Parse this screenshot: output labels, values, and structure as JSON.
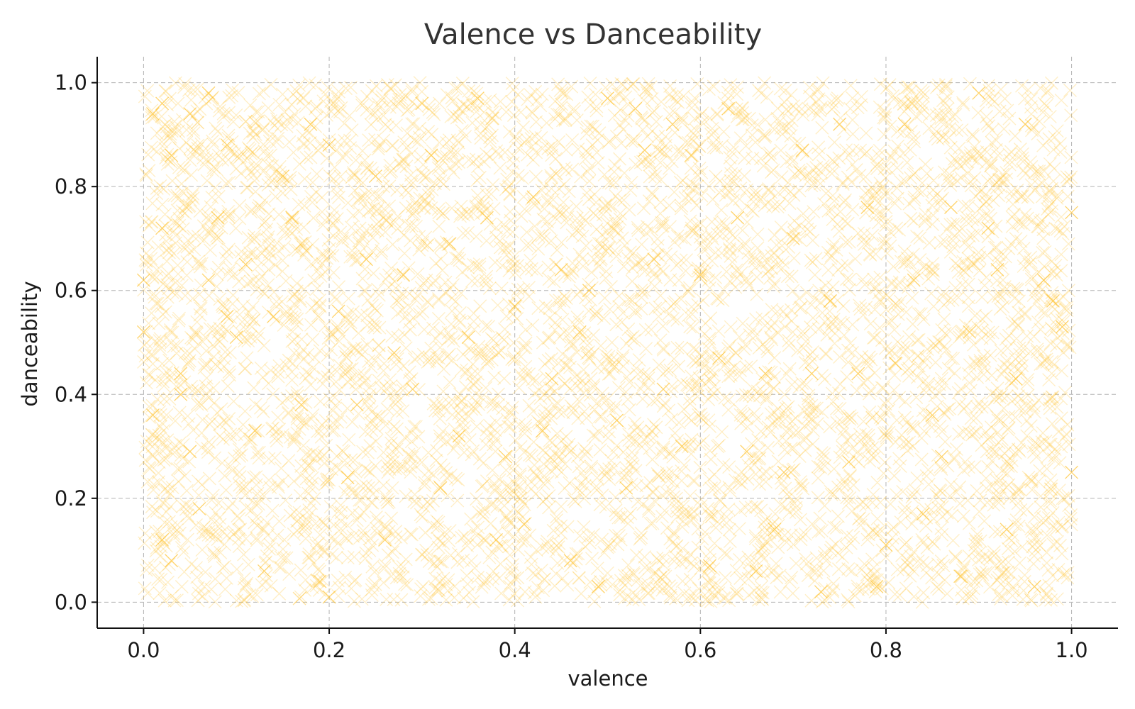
{
  "chart_data": {
    "type": "scatter",
    "title": "Valence vs Danceability",
    "xlabel": "valence",
    "ylabel": "danceability",
    "xlim": [
      -0.05,
      1.05
    ],
    "ylim": [
      -0.05,
      1.05
    ],
    "xticks": [
      0.0,
      0.2,
      0.4,
      0.6,
      0.8,
      1.0
    ],
    "yticks": [
      0.0,
      0.2,
      0.4,
      0.6,
      0.8,
      1.0
    ],
    "xtick_labels": [
      "0.0",
      "0.2",
      "0.4",
      "0.6",
      "0.8",
      "1.0"
    ],
    "ytick_labels": [
      "0.0",
      "0.2",
      "0.4",
      "0.6",
      "0.8",
      "1.0"
    ],
    "grid": true,
    "marker": "x",
    "point_count": 5000,
    "color": "#FFC22D",
    "series": [
      {
        "values": [
          {
            "x": 0.0,
            "y": 0.62
          },
          {
            "x": 0.0,
            "y": 0.52
          },
          {
            "x": 0.01,
            "y": 0.94
          },
          {
            "x": 0.01,
            "y": 0.36
          },
          {
            "x": 0.02,
            "y": 0.12
          },
          {
            "x": 0.02,
            "y": 0.96
          },
          {
            "x": 0.02,
            "y": 0.72
          },
          {
            "x": 0.03,
            "y": 0.86
          },
          {
            "x": 0.03,
            "y": 0.08
          },
          {
            "x": 0.04,
            "y": 0.44
          },
          {
            "x": 0.04,
            "y": 0.4
          },
          {
            "x": 0.05,
            "y": 0.94
          },
          {
            "x": 0.05,
            "y": 0.29
          },
          {
            "x": 0.06,
            "y": 0.18
          },
          {
            "x": 0.07,
            "y": 0.62
          },
          {
            "x": 0.07,
            "y": 0.98
          },
          {
            "x": 0.08,
            "y": 0.74
          },
          {
            "x": 0.09,
            "y": 0.88
          },
          {
            "x": 0.09,
            "y": 0.55
          },
          {
            "x": 0.1,
            "y": 0.51
          },
          {
            "x": 0.11,
            "y": 0.65
          },
          {
            "x": 0.12,
            "y": 0.33
          },
          {
            "x": 0.13,
            "y": 0.06
          },
          {
            "x": 0.14,
            "y": 0.55
          },
          {
            "x": 0.15,
            "y": 0.82
          },
          {
            "x": 0.16,
            "y": 0.74
          },
          {
            "x": 0.17,
            "y": 0.38
          },
          {
            "x": 0.18,
            "y": 0.92
          },
          {
            "x": 0.19,
            "y": 0.04
          },
          {
            "x": 0.2,
            "y": 0.01
          },
          {
            "x": 0.2,
            "y": 0.88
          },
          {
            "x": 0.21,
            "y": 0.56
          },
          {
            "x": 0.22,
            "y": 0.24
          },
          {
            "x": 0.23,
            "y": 0.38
          },
          {
            "x": 0.24,
            "y": 0.66
          },
          {
            "x": 0.25,
            "y": 0.82
          },
          {
            "x": 0.26,
            "y": 0.12
          },
          {
            "x": 0.27,
            "y": 0.48
          },
          {
            "x": 0.28,
            "y": 0.63
          },
          {
            "x": 0.29,
            "y": 0.41
          },
          {
            "x": 0.3,
            "y": 0.96
          },
          {
            "x": 0.31,
            "y": 0.86
          },
          {
            "x": 0.32,
            "y": 0.22
          },
          {
            "x": 0.33,
            "y": 0.69
          },
          {
            "x": 0.34,
            "y": 0.32
          },
          {
            "x": 0.35,
            "y": 0.51
          },
          {
            "x": 0.36,
            "y": 0.97
          },
          {
            "x": 0.37,
            "y": 0.74
          },
          {
            "x": 0.38,
            "y": 0.12
          },
          {
            "x": 0.39,
            "y": 0.28
          },
          {
            "x": 0.4,
            "y": 0.57
          },
          {
            "x": 0.41,
            "y": 0.15
          },
          {
            "x": 0.42,
            "y": 0.78
          },
          {
            "x": 0.43,
            "y": 0.33
          },
          {
            "x": 0.44,
            "y": 0.43
          },
          {
            "x": 0.45,
            "y": 0.64
          },
          {
            "x": 0.46,
            "y": 0.08
          },
          {
            "x": 0.47,
            "y": 0.52
          },
          {
            "x": 0.48,
            "y": 0.6
          },
          {
            "x": 0.49,
            "y": 0.03
          },
          {
            "x": 0.5,
            "y": 0.97
          },
          {
            "x": 0.51,
            "y": 0.35
          },
          {
            "x": 0.52,
            "y": 0.22
          },
          {
            "x": 0.53,
            "y": 0.95
          },
          {
            "x": 0.54,
            "y": 0.87
          },
          {
            "x": 0.55,
            "y": 0.66
          },
          {
            "x": 0.56,
            "y": 0.41
          },
          {
            "x": 0.57,
            "y": 0.92
          },
          {
            "x": 0.58,
            "y": 0.3
          },
          {
            "x": 0.59,
            "y": 0.86
          },
          {
            "x": 0.6,
            "y": 0.63
          },
          {
            "x": 0.61,
            "y": 0.07
          },
          {
            "x": 0.62,
            "y": 0.47
          },
          {
            "x": 0.63,
            "y": 0.95
          },
          {
            "x": 0.64,
            "y": 0.74
          },
          {
            "x": 0.65,
            "y": 0.29
          },
          {
            "x": 0.66,
            "y": 0.06
          },
          {
            "x": 0.67,
            "y": 0.44
          },
          {
            "x": 0.68,
            "y": 0.14
          },
          {
            "x": 0.69,
            "y": 0.25
          },
          {
            "x": 0.7,
            "y": 0.7
          },
          {
            "x": 0.71,
            "y": 0.87
          },
          {
            "x": 0.72,
            "y": 0.44
          },
          {
            "x": 0.73,
            "y": 0.02
          },
          {
            "x": 0.74,
            "y": 0.58
          },
          {
            "x": 0.75,
            "y": 0.92
          },
          {
            "x": 0.76,
            "y": 0.27
          },
          {
            "x": 0.77,
            "y": 0.44
          },
          {
            "x": 0.78,
            "y": 0.76
          },
          {
            "x": 0.79,
            "y": 0.03
          },
          {
            "x": 0.8,
            "y": 0.11
          },
          {
            "x": 0.81,
            "y": 0.46
          },
          {
            "x": 0.82,
            "y": 0.92
          },
          {
            "x": 0.83,
            "y": 0.62
          },
          {
            "x": 0.84,
            "y": 0.17
          },
          {
            "x": 0.85,
            "y": 0.36
          },
          {
            "x": 0.86,
            "y": 0.28
          },
          {
            "x": 0.87,
            "y": 0.76
          },
          {
            "x": 0.88,
            "y": 0.05
          },
          {
            "x": 0.89,
            "y": 0.52
          },
          {
            "x": 0.9,
            "y": 0.98
          },
          {
            "x": 0.91,
            "y": 0.72
          },
          {
            "x": 0.92,
            "y": 0.64
          },
          {
            "x": 0.93,
            "y": 0.14
          },
          {
            "x": 0.94,
            "y": 0.43
          },
          {
            "x": 0.95,
            "y": 0.92
          },
          {
            "x": 0.96,
            "y": 0.03
          },
          {
            "x": 0.97,
            "y": 0.62
          },
          {
            "x": 0.98,
            "y": 0.58
          },
          {
            "x": 0.99,
            "y": 0.53
          },
          {
            "x": 1.0,
            "y": 0.75
          },
          {
            "x": 1.0,
            "y": 0.25
          }
        ]
      }
    ]
  }
}
